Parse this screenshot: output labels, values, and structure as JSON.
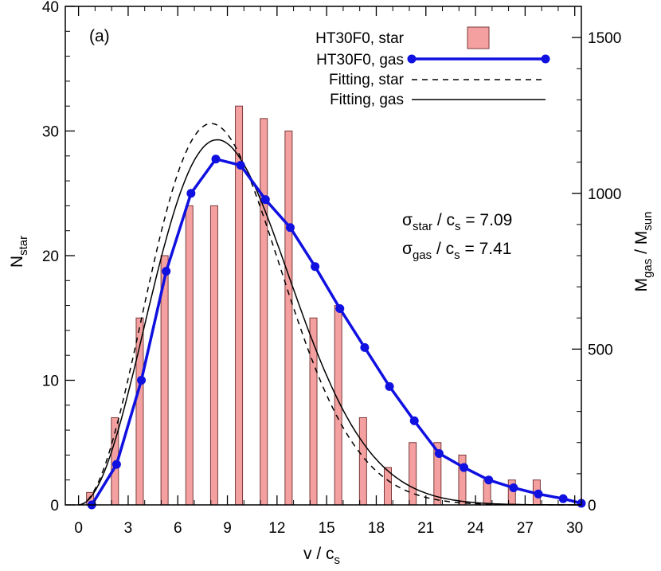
{
  "chart_data": {
    "type": "bar",
    "panel_label": "(a)",
    "xlabel": {
      "main": "v / c",
      "sub": "s"
    },
    "ylabel_left": {
      "main": "N",
      "sub": "star"
    },
    "ylabel_right": {
      "main": "M",
      "sub1": "gas",
      "mid": " / M",
      "sub2": "sun"
    },
    "xlim": [
      -0.8,
      30.4
    ],
    "ylim_left": [
      0,
      40
    ],
    "ylim_right": [
      0,
      1600
    ],
    "xticks": [
      0,
      3,
      6,
      9,
      12,
      15,
      18,
      21,
      24,
      27,
      30
    ],
    "yticks_left": [
      0,
      10,
      20,
      30,
      40
    ],
    "yticks_right": [
      0,
      500,
      1000,
      1500
    ],
    "legend": {
      "placement": "top-right",
      "star": "HT30F0, star",
      "gas": "HT30F0, gas",
      "fit_star": "Fitting, star",
      "fit_gas": "Fitting, gas"
    },
    "annotations": [
      {
        "sym": "σ",
        "sub": "star",
        "text": " / c",
        "sub2": "s",
        "value": " = 7.09"
      },
      {
        "sym": "σ",
        "sub": "gas",
        "text": " / c",
        "sub2": "s",
        "value": " = 7.41"
      }
    ],
    "star_bars": {
      "x": [
        0.7,
        2.2,
        3.7,
        5.2,
        6.7,
        8.2,
        9.7,
        11.2,
        12.7,
        14.2,
        15.7,
        17.2,
        18.7,
        20.2,
        21.7,
        23.2,
        24.7,
        26.2,
        27.7
      ],
      "values": [
        1,
        7,
        15,
        20,
        24,
        24,
        32,
        31,
        30,
        15,
        16,
        7,
        3,
        5,
        5,
        4,
        2,
        2,
        2
      ]
    },
    "gas_series": {
      "x": [
        0.8,
        2.3,
        3.8,
        5.3,
        6.8,
        8.3,
        9.8,
        11.3,
        12.8,
        14.3,
        15.8,
        17.3,
        18.8,
        20.3,
        21.8,
        23.3,
        24.8,
        26.3,
        27.8,
        29.3,
        30.4
      ],
      "values": [
        0,
        130,
        400,
        750,
        1000,
        1110,
        1090,
        980,
        890,
        765,
        630,
        505,
        380,
        270,
        165,
        120,
        80,
        55,
        35,
        20,
        5
      ]
    },
    "fit_star": {
      "sigma": 7.09
    },
    "fit_gas": {
      "sigma": 7.41
    },
    "colors": {
      "bar_fill": "#f4a0a0",
      "bar_stroke": "#7a3a3a",
      "gas": "#1010e0",
      "fit": "#000000"
    }
  }
}
